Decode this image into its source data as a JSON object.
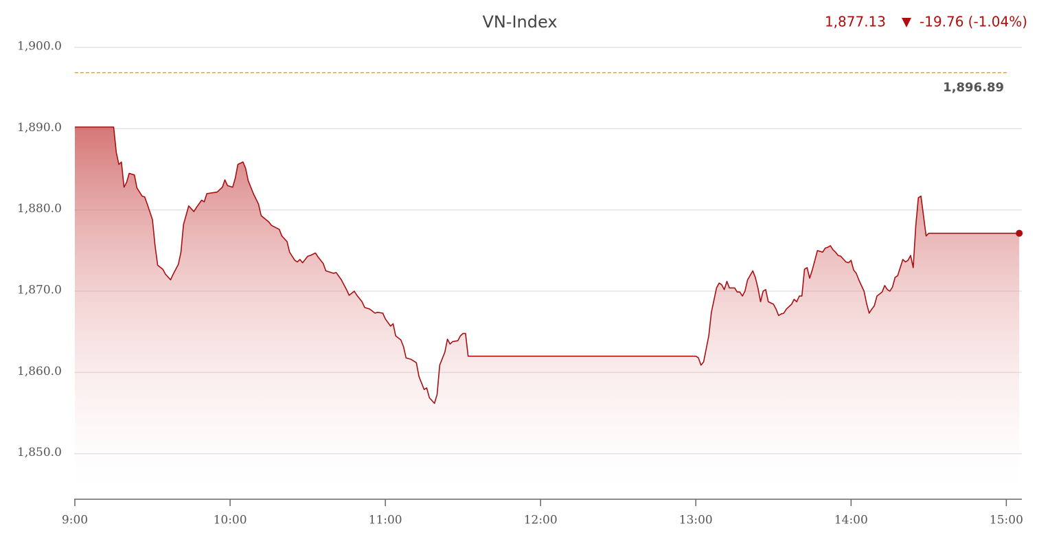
{
  "chart_data": {
    "type": "area",
    "title": "VN-Index",
    "last": "1,877.13",
    "change": "-19.76",
    "change_pct": "(-1.04%)",
    "reference": {
      "value": 1896.89,
      "label": "1,896.89"
    },
    "color": "#a80f12",
    "reference_color": "#f0a30a",
    "grid": true,
    "x": [
      "9:00",
      "9:15",
      "9:16",
      "9:17",
      "9:18",
      "9:19",
      "9:20",
      "9:21",
      "9:23",
      "9:24",
      "9:26",
      "9:27",
      "9:28",
      "9:30",
      "9:31",
      "9:32",
      "9:34",
      "9:35",
      "9:37",
      "9:38",
      "9:40",
      "9:41",
      "9:42",
      "9:44",
      "9:46",
      "9:47",
      "9:49",
      "9:50",
      "9:51",
      "9:53",
      "9:55",
      "9:57",
      "9:58",
      "9:59",
      "10:01",
      "10:02",
      "10:03",
      "10:05",
      "10:06",
      "10:07",
      "10:09",
      "10:11",
      "10:12",
      "10:15",
      "10:16",
      "10:19",
      "10:20",
      "10:22",
      "10:23",
      "10:25",
      "10:26",
      "10:27",
      "10:28",
      "10:30",
      "10:31",
      "10:33",
      "10:34",
      "10:36",
      "10:37",
      "10:40",
      "10:41",
      "10:43",
      "10:45",
      "10:46",
      "10:48",
      "10:49",
      "10:51",
      "10:52",
      "10:54",
      "10:56",
      "10:57",
      "10:59",
      "11:00",
      "11:02",
      "11:03",
      "11:04",
      "11:06",
      "11:07",
      "11:08",
      "11:10",
      "11:12",
      "11:13",
      "11:15",
      "11:16",
      "11:17",
      "11:19",
      "11:20",
      "11:21",
      "11:23",
      "11:24",
      "11:25",
      "11:26",
      "11:28",
      "11:29",
      "11:30",
      "11:31",
      "11:32",
      "13:00",
      "13:01",
      "13:02",
      "13:03",
      "13:05",
      "13:06",
      "13:08",
      "13:09",
      "13:10",
      "13:11",
      "13:12",
      "13:13",
      "13:15",
      "13:16",
      "13:17",
      "13:18",
      "13:19",
      "13:20",
      "13:22",
      "13:23",
      "13:24",
      "13:25",
      "13:26",
      "13:27",
      "13:28",
      "13:30",
      "13:31",
      "13:32",
      "13:33",
      "13:34",
      "13:35",
      "13:37",
      "13:38",
      "13:39",
      "13:40",
      "13:41",
      "13:42",
      "13:43",
      "13:44",
      "13:45",
      "13:46",
      "13:47",
      "13:49",
      "13:50",
      "13:51",
      "13:52",
      "13:53",
      "13:54",
      "13:55",
      "13:56",
      "13:58",
      "13:59",
      "14:00",
      "14:01",
      "14:02",
      "14:03",
      "14:05",
      "14:06",
      "14:07",
      "14:08",
      "14:09",
      "14:10",
      "14:12",
      "14:13",
      "14:14",
      "14:15",
      "14:16",
      "14:17",
      "14:18",
      "14:20",
      "14:21",
      "14:22",
      "14:23",
      "14:24",
      "14:25",
      "14:26",
      "14:27",
      "14:29",
      "14:30",
      "15:05"
    ],
    "values": [
      1890.2,
      1890.2,
      1887.1,
      1885.6,
      1885.9,
      1882.8,
      1883.4,
      1884.5,
      1884.3,
      1882.7,
      1881.7,
      1881.6,
      1880.7,
      1878.8,
      1875.6,
      1873.2,
      1872.7,
      1872.1,
      1871.4,
      1872.1,
      1873.3,
      1874.8,
      1878.2,
      1880.5,
      1879.8,
      1880.3,
      1881.2,
      1881.0,
      1882.0,
      1882.1,
      1882.2,
      1882.8,
      1883.7,
      1883.0,
      1882.8,
      1883.9,
      1885.6,
      1885.9,
      1885.1,
      1883.6,
      1882.0,
      1880.7,
      1879.3,
      1878.5,
      1878.1,
      1877.6,
      1876.8,
      1876.1,
      1874.8,
      1873.8,
      1873.6,
      1873.9,
      1873.5,
      1874.3,
      1874.4,
      1874.7,
      1874.2,
      1873.4,
      1872.5,
      1872.2,
      1872.3,
      1871.4,
      1870.2,
      1869.5,
      1870.0,
      1869.5,
      1868.7,
      1868.0,
      1867.8,
      1867.3,
      1867.4,
      1867.3,
      1866.6,
      1865.7,
      1866.0,
      1864.5,
      1864.0,
      1863.2,
      1861.8,
      1861.6,
      1861.2,
      1859.5,
      1857.9,
      1858.1,
      1856.9,
      1856.2,
      1857.3,
      1860.9,
      1862.5,
      1864.1,
      1863.5,
      1863.8,
      1863.9,
      1864.5,
      1864.8,
      1864.8,
      1862.0,
      1862.0,
      1861.8,
      1860.9,
      1861.3,
      1864.5,
      1867.4,
      1870.4,
      1871.0,
      1870.8,
      1870.2,
      1871.2,
      1870.4,
      1870.4,
      1869.9,
      1869.9,
      1869.4,
      1870.0,
      1871.4,
      1872.5,
      1871.7,
      1870.4,
      1868.7,
      1870.0,
      1870.2,
      1868.7,
      1868.4,
      1867.8,
      1867.0,
      1867.2,
      1867.3,
      1867.8,
      1868.4,
      1869.0,
      1868.7,
      1869.4,
      1869.4,
      1872.7,
      1872.9,
      1871.6,
      1872.6,
      1873.8,
      1875.0,
      1874.8,
      1875.3,
      1875.4,
      1875.6,
      1875.1,
      1874.8,
      1874.4,
      1874.3,
      1873.6,
      1873.5,
      1873.8,
      1872.6,
      1872.2,
      1871.4,
      1870.0,
      1868.5,
      1867.3,
      1867.8,
      1868.2,
      1869.4,
      1869.9,
      1870.7,
      1870.2,
      1870.0,
      1870.5,
      1871.7,
      1871.9,
      1873.9,
      1873.6,
      1873.8,
      1874.4,
      1872.9,
      1878.0,
      1881.5,
      1881.7,
      1876.8,
      1877.13,
      1877.13
    ],
    "xlim": [
      "9:00",
      "15:06"
    ],
    "xticks": [
      "9:00",
      "10:00",
      "11:00",
      "12:00",
      "13:00",
      "14:00",
      "15:00"
    ],
    "ylim": [
      1844.4,
      1900
    ],
    "yticks": [
      {
        "value": 1850,
        "label": "1,850.0"
      },
      {
        "value": 1860,
        "label": "1,860.0"
      },
      {
        "value": 1870,
        "label": "1,870.0"
      },
      {
        "value": 1880,
        "label": "1,880.0"
      },
      {
        "value": 1890,
        "label": "1,890.0"
      },
      {
        "value": 1900,
        "label": "1,900.0"
      }
    ]
  }
}
